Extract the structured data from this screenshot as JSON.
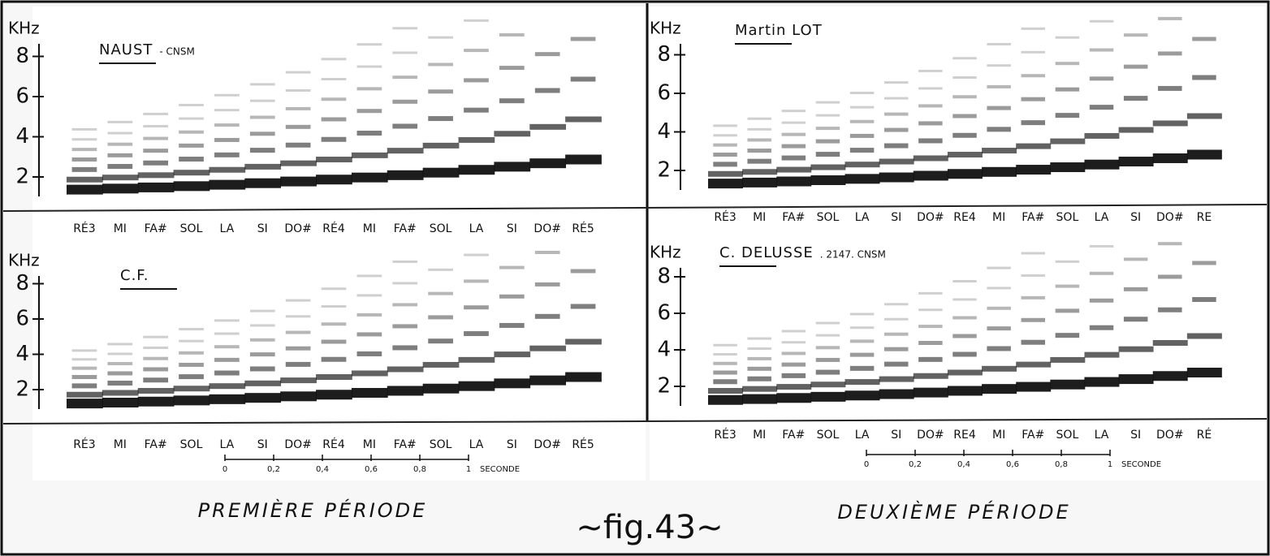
{
  "panels": [
    {
      "title": "NAUST",
      "subtitle": "- CNSM",
      "axis_label": "KHz",
      "yticks": [
        "2",
        "4",
        "6",
        "8"
      ],
      "notes": [
        "RÉ3",
        "MI",
        "FA#",
        "SOL",
        "LA",
        "SI",
        "DO#",
        "RÉ4",
        "MI",
        "FA#",
        "SOL",
        "LA",
        "SI",
        "DO#",
        "RÉ5"
      ]
    },
    {
      "title": "Martin LOT",
      "axis_label": "KHz",
      "yticks": [
        "2",
        "4",
        "6",
        "8"
      ],
      "notes": [
        "RÉ3",
        "MI",
        "FA#",
        "SOL",
        "LA",
        "SI",
        "DO#",
        "RE4",
        "MI",
        "FA#",
        "SOL",
        "LA",
        "SI",
        "DO#",
        "RE"
      ]
    },
    {
      "title": "C.F.",
      "axis_label": "KHz",
      "yticks": [
        "2",
        "4",
        "6",
        "8"
      ],
      "notes": [
        "RÉ3",
        "MI",
        "FA#",
        "SOL",
        "LA",
        "SI",
        "DO#",
        "RÉ4",
        "MI",
        "FA#",
        "SOL",
        "LA",
        "SI",
        "DO#",
        "RÉ5"
      ],
      "time_scale": {
        "ticks": [
          "0",
          "0,2",
          "0,4",
          "0,6",
          "0,8",
          "1"
        ],
        "unit": "SECONDE"
      }
    },
    {
      "title": "C. DELUSSE",
      "subtitle": ". 2147. CNSM",
      "axis_label": "KHz",
      "yticks": [
        "2",
        "4",
        "6",
        "8"
      ],
      "notes": [
        "RÉ3",
        "MI",
        "FA#",
        "SOL",
        "LA",
        "SI",
        "DO#",
        "RE4",
        "MI",
        "FA#",
        "SOL",
        "LA",
        "SI",
        "DO#",
        "RÉ"
      ],
      "time_scale": {
        "ticks": [
          "0",
          "0,2",
          "0,4",
          "0,6",
          "0,8",
          "1"
        ],
        "unit": "SECONDE"
      }
    }
  ],
  "captions": {
    "left": "PREMIÈRE PÉRIODE",
    "right": "DEUXIÈME PÉRIODE",
    "figure": "~fig.43~"
  }
}
